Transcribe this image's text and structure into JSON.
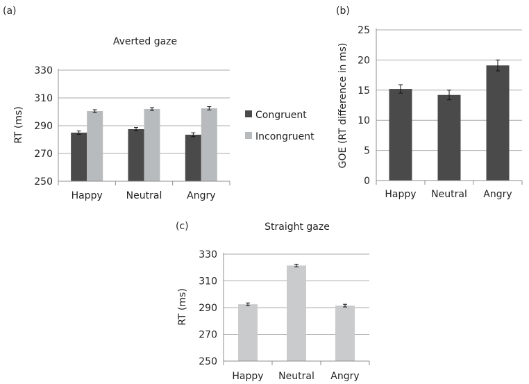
{
  "chart_data": [
    {
      "panel": "(a)",
      "type": "bar",
      "title": "Averted gaze",
      "ylabel": "RT (ms)",
      "xlabel": "",
      "categories": [
        "Happy",
        "Neutral",
        "Angry"
      ],
      "ylim": [
        250,
        330
      ],
      "yticks": [
        250,
        270,
        290,
        310,
        330
      ],
      "grid": true,
      "legend": "right",
      "series": [
        {
          "name": "Congruent",
          "color": "#4a4a4a",
          "values": [
            285,
            287.5,
            283.5
          ],
          "errors": [
            1.2,
            1.2,
            1.4
          ]
        },
        {
          "name": "Incongruent",
          "color": "#b8bbbd",
          "values": [
            300.5,
            302,
            302.5
          ],
          "errors": [
            1.0,
            1.0,
            1.2
          ]
        }
      ]
    },
    {
      "panel": "(b)",
      "type": "bar",
      "title": "",
      "ylabel": "GOE (RT difference in ms)",
      "xlabel": "",
      "categories": [
        "Happy",
        "Neutral",
        "Angry"
      ],
      "ylim": [
        0,
        25
      ],
      "yticks": [
        0,
        5,
        10,
        15,
        20,
        25
      ],
      "grid": true,
      "series": [
        {
          "color": "#4a4a4a",
          "values": [
            15.2,
            14.2,
            19.1
          ],
          "errors": [
            0.7,
            0.8,
            0.9
          ]
        }
      ]
    },
    {
      "panel": "(c)",
      "type": "bar",
      "title": "Straight gaze",
      "ylabel": "RT (ms)",
      "xlabel": "",
      "categories": [
        "Happy",
        "Neutral",
        "Angry"
      ],
      "ylim": [
        250,
        330
      ],
      "yticks": [
        250,
        270,
        290,
        310,
        330
      ],
      "grid": true,
      "series": [
        {
          "color": "#c9cbcd",
          "values": [
            292.5,
            321.5,
            291.5
          ],
          "errors": [
            1.0,
            1.0,
            1.0
          ]
        }
      ]
    }
  ]
}
